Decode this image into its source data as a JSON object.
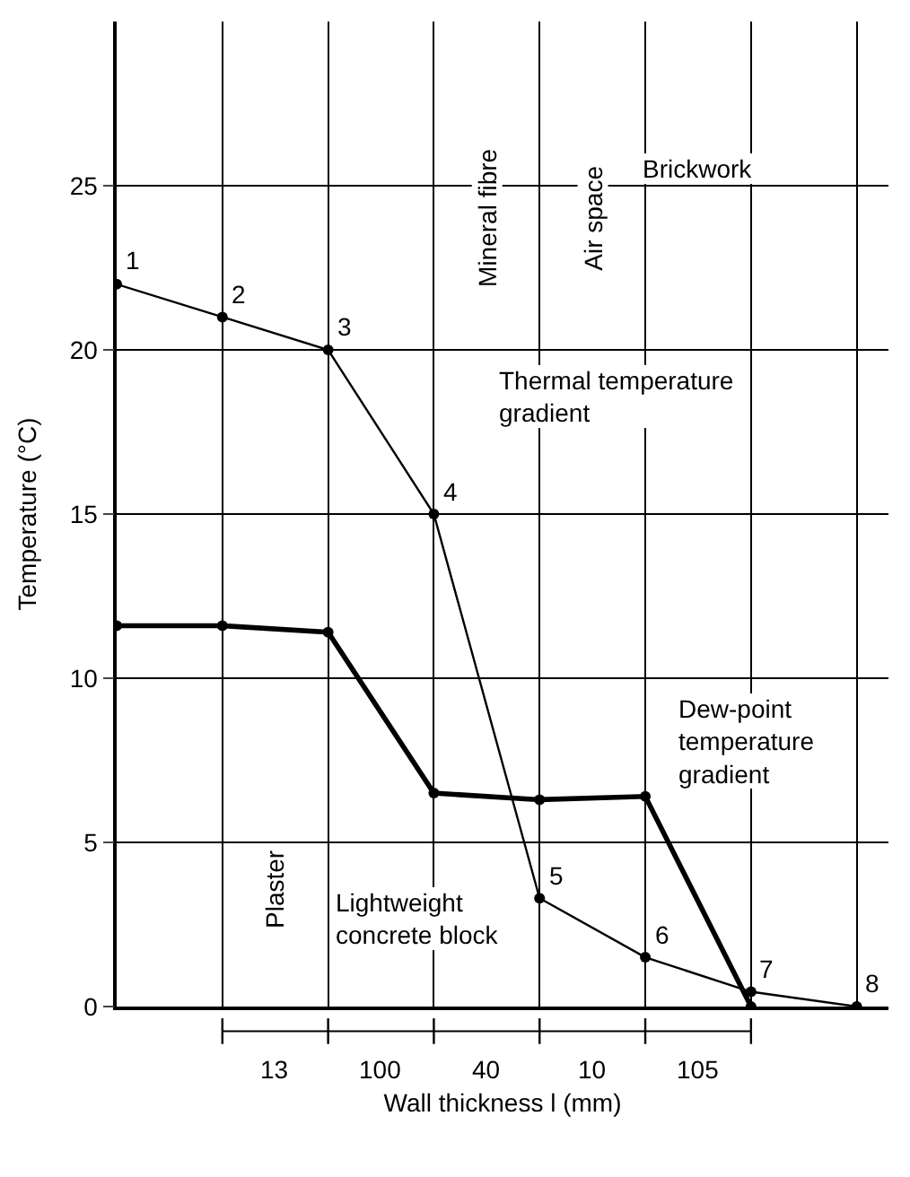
{
  "chart_data": {
    "type": "line",
    "xlabel": "Wall thickness l (mm)",
    "ylabel": "Temperature (°C)",
    "categories": [
      null,
      null,
      null,
      null,
      null,
      null,
      null,
      null
    ],
    "ylim": [
      0,
      30
    ],
    "yticks": [
      0,
      5,
      10,
      15,
      20,
      25
    ],
    "grid": true,
    "marker": "circle",
    "line_style": "solid",
    "series": [
      {
        "color": "#000000",
        "values": [
          22,
          21,
          20,
          15,
          3.3,
          1.5,
          0.45,
          0
        ]
      },
      {
        "color": "#000000",
        "values": [
          11.6,
          11.6,
          11.4,
          6.5,
          6.3,
          6.4,
          0,
          null
        ]
      }
    ],
    "annotations": [
      "1",
      "2",
      "3",
      "4",
      "5",
      "6",
      "7",
      "8",
      "13",
      "100",
      "40",
      "10",
      "105",
      "Thermal temperature\ngradient",
      "Lightweight\nconcrete block",
      "Dew-point\ntemperature\ngradient",
      "Plaster",
      "Mineral fibre",
      "Air space",
      "Brickwork"
    ]
  }
}
